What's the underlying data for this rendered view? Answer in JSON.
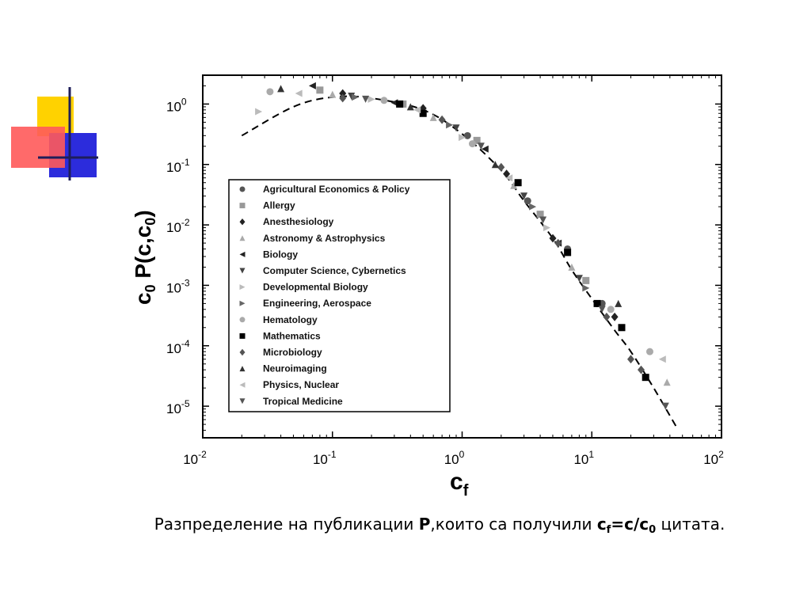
{
  "caption": {
    "prefix": "Разпределение на публикации ",
    "bold_p": "P",
    "middle": ",които са получили ",
    "cf_main": "c",
    "cf_sub": "f",
    "eq_main": "=c/c",
    "eq_sub": "0",
    "suffix": " цитата."
  },
  "chart_data": {
    "type": "scatter",
    "x_scale": "log",
    "y_scale": "log",
    "xlim": [
      0.01,
      100
    ],
    "ylim": [
      3e-06,
      3
    ],
    "x_ticks": [
      {
        "value": 0.01,
        "base": "10",
        "exp": "-2"
      },
      {
        "value": 0.1,
        "base": "10",
        "exp": "-1"
      },
      {
        "value": 1,
        "base": "10",
        "exp": "0"
      },
      {
        "value": 10,
        "base": "10",
        "exp": "1"
      },
      {
        "value": 100,
        "base": "10",
        "exp": "2"
      }
    ],
    "y_ticks": [
      {
        "value": 1,
        "base": "10",
        "exp": "0"
      },
      {
        "value": 0.1,
        "base": "10",
        "exp": "-1"
      },
      {
        "value": 0.01,
        "base": "10",
        "exp": "-2"
      },
      {
        "value": 0.001,
        "base": "10",
        "exp": "-3"
      },
      {
        "value": 0.0001,
        "base": "10",
        "exp": "-4"
      },
      {
        "value": 1e-05,
        "base": "10",
        "exp": "-5"
      }
    ],
    "xlabel": {
      "main": "c",
      "sub": "f"
    },
    "ylabel": {
      "c": "c",
      "c_sub": "0",
      "p": "P(c,c",
      "p_sub": "0",
      "close": ")"
    },
    "legend_position": "lower-left",
    "fit_curve": {
      "style": "dashed",
      "points": [
        [
          0.02,
          0.3
        ],
        [
          0.05,
          0.9
        ],
        [
          0.1,
          1.3
        ],
        [
          0.2,
          1.25
        ],
        [
          0.5,
          0.8
        ],
        [
          1,
          0.32
        ],
        [
          2,
          0.08
        ],
        [
          3,
          0.025
        ],
        [
          5,
          0.006
        ],
        [
          7,
          0.0018
        ],
        [
          10,
          0.0006
        ],
        [
          15,
          0.00018
        ],
        [
          20,
          8e-05
        ],
        [
          30,
          2e-05
        ],
        [
          45,
          4.5e-06
        ]
      ]
    },
    "series": [
      {
        "name": "Agricultural Economics & Policy",
        "marker": "circle",
        "color": "#555555",
        "points": [
          [
            1.1,
            0.3
          ],
          [
            3.2,
            0.025
          ],
          [
            6.5,
            0.004
          ],
          [
            12,
            0.0005
          ]
        ]
      },
      {
        "name": "Allergy",
        "marker": "square",
        "color": "#999999",
        "points": [
          [
            0.08,
            1.7
          ],
          [
            0.35,
            1.0
          ],
          [
            1.3,
            0.25
          ],
          [
            4,
            0.015
          ],
          [
            9,
            0.0012
          ]
        ]
      },
      {
        "name": "Anesthesiology",
        "marker": "diamond",
        "color": "#222222",
        "points": [
          [
            0.12,
            1.5
          ],
          [
            0.5,
            0.85
          ],
          [
            2.2,
            0.07
          ],
          [
            5,
            0.006
          ],
          [
            15,
            0.0003
          ]
        ]
      },
      {
        "name": "Astronomy & Astrophysics",
        "marker": "triangle-up",
        "color": "#aaaaaa",
        "points": [
          [
            0.1,
            1.45
          ],
          [
            0.6,
            0.6
          ],
          [
            2.5,
            0.045
          ],
          [
            7,
            0.002
          ],
          [
            38,
            2.5e-05
          ]
        ]
      },
      {
        "name": "Biology",
        "marker": "triangle-left",
        "color": "#222222",
        "points": [
          [
            0.07,
            2.0
          ],
          [
            0.3,
            1.05
          ],
          [
            1.5,
            0.18
          ],
          [
            5.5,
            0.005
          ]
        ]
      },
      {
        "name": "Computer Science, Cybernetics",
        "marker": "triangle-down",
        "color": "#444444",
        "points": [
          [
            0.14,
            1.35
          ],
          [
            0.9,
            0.4
          ],
          [
            3,
            0.03
          ],
          [
            8,
            0.0013
          ]
        ]
      },
      {
        "name": "Developmental Biology",
        "marker": "triangle-right",
        "color": "#bbbbbb",
        "points": [
          [
            0.027,
            0.75
          ],
          [
            0.2,
            1.2
          ],
          [
            1,
            0.28
          ],
          [
            4.5,
            0.009
          ]
        ]
      },
      {
        "name": "Engineering, Aerospace",
        "marker": "triangle-right",
        "color": "#666666",
        "points": [
          [
            0.15,
            1.3
          ],
          [
            0.8,
            0.45
          ],
          [
            3.5,
            0.02
          ],
          [
            9,
            0.0009
          ]
        ]
      },
      {
        "name": "Hematology",
        "marker": "circle",
        "color": "#aaaaaa",
        "points": [
          [
            0.033,
            1.6
          ],
          [
            0.25,
            1.15
          ],
          [
            1.2,
            0.22
          ],
          [
            14,
            0.0004
          ],
          [
            28,
            8e-05
          ]
        ]
      },
      {
        "name": "Mathematics",
        "marker": "square",
        "color": "#000000",
        "points": [
          [
            0.33,
            1.0
          ],
          [
            0.5,
            0.7
          ],
          [
            2.7,
            0.05
          ],
          [
            6.5,
            0.0035
          ],
          [
            11,
            0.0005
          ],
          [
            17,
            0.0002
          ],
          [
            26,
            3e-05
          ]
        ]
      },
      {
        "name": "Microbiology",
        "marker": "diamond",
        "color": "#555555",
        "points": [
          [
            0.12,
            1.25
          ],
          [
            0.7,
            0.55
          ],
          [
            2,
            0.09
          ],
          [
            5.5,
            0.005
          ],
          [
            13,
            0.0003
          ],
          [
            20,
            6e-05
          ],
          [
            24,
            4e-05
          ]
        ]
      },
      {
        "name": "Neuroimaging",
        "marker": "triangle-up",
        "color": "#333333",
        "points": [
          [
            0.04,
            1.8
          ],
          [
            0.4,
            0.9
          ],
          [
            1.8,
            0.1
          ],
          [
            16,
            0.0005
          ]
        ]
      },
      {
        "name": "Physics, Nuclear",
        "marker": "triangle-left",
        "color": "#bbbbbb",
        "points": [
          [
            0.055,
            1.5
          ],
          [
            0.45,
            0.8
          ],
          [
            2.3,
            0.06
          ],
          [
            35,
            6e-05
          ]
        ]
      },
      {
        "name": "Tropical Medicine",
        "marker": "triangle-down",
        "color": "#555555",
        "points": [
          [
            0.18,
            1.2
          ],
          [
            1.4,
            0.2
          ],
          [
            4.2,
            0.012
          ],
          [
            12,
            0.0004
          ],
          [
            37,
            1e-05
          ]
        ]
      }
    ]
  }
}
